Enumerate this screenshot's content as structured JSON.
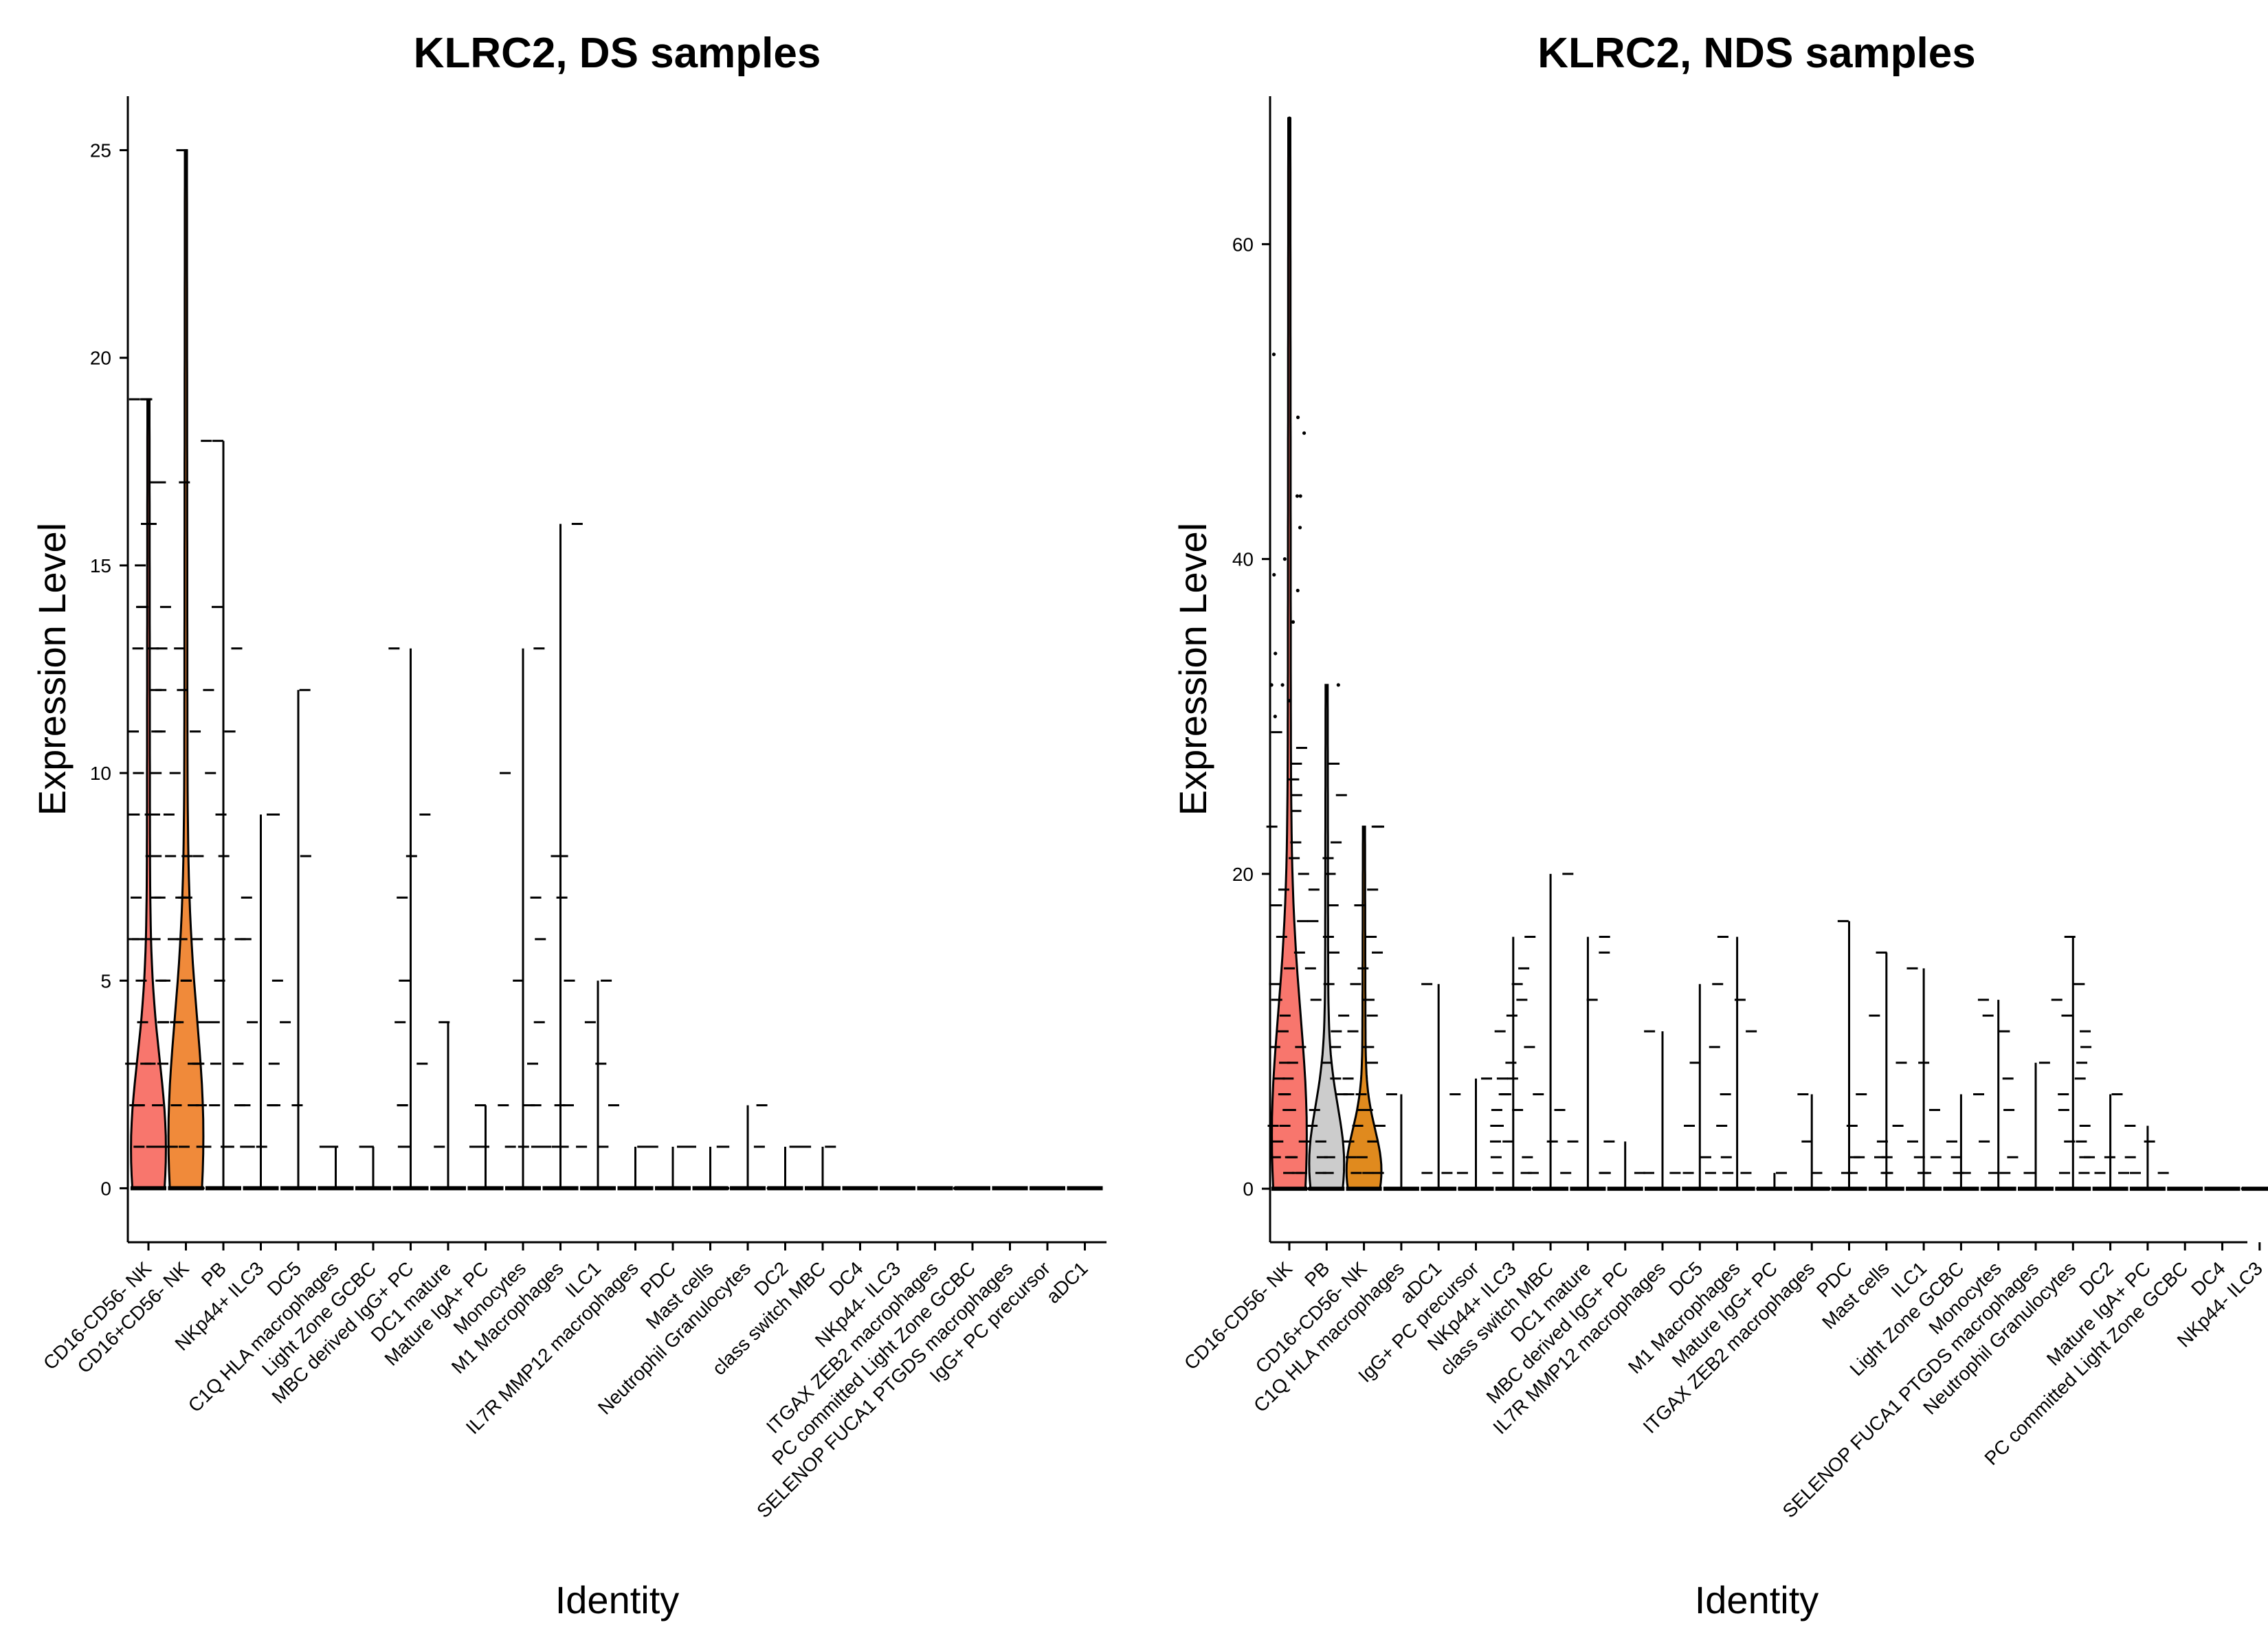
{
  "chart_data": [
    {
      "type": "violin",
      "title": "KLRC2, DS samples",
      "xlabel": "Identity",
      "ylabel": "Expression Level",
      "ylim": [
        -1.3,
        26.3
      ],
      "yticks": [
        0,
        5,
        10,
        15,
        20,
        25
      ],
      "grid": false,
      "legend": "none",
      "categories": [
        {
          "name": "CD16-CD56- NK",
          "max": 19,
          "color": "#F8766D",
          "violin": true,
          "points": [
            0,
            0,
            0,
            0,
            1,
            1,
            1,
            1,
            1,
            2,
            2,
            2,
            2,
            3,
            3,
            3,
            3,
            4,
            4,
            4,
            5,
            5,
            5,
            6,
            6,
            6,
            6,
            7,
            7,
            7,
            8,
            8,
            8,
            9,
            9,
            9,
            10,
            10,
            11,
            11,
            11,
            12,
            12,
            13,
            13,
            13,
            14,
            14,
            14,
            15,
            16,
            16,
            17,
            17,
            19,
            19,
            19
          ]
        },
        {
          "name": "CD16+CD56- NK",
          "max": 25,
          "color": "#F08A3A",
          "violin": true,
          "points": [
            0,
            0,
            0,
            0,
            1,
            1,
            1,
            1,
            2,
            2,
            2,
            3,
            3,
            3,
            4,
            4,
            4,
            5,
            5,
            6,
            6,
            6,
            7,
            7,
            7,
            8,
            8,
            8,
            9,
            10,
            11,
            12,
            13,
            17,
            25
          ]
        },
        {
          "name": "PB",
          "max": 18,
          "color": "#cccccc",
          "violin": false,
          "points": [
            0,
            0,
            0,
            1,
            1,
            1,
            2,
            2,
            3,
            3,
            4,
            5,
            6,
            6,
            8,
            9,
            10,
            11,
            12,
            13,
            14,
            18,
            18
          ]
        },
        {
          "name": "NKp44+ ILC3",
          "max": 9,
          "color": "#cccccc",
          "violin": false,
          "points": [
            0,
            0,
            0,
            1,
            1,
            1,
            2,
            2,
            2,
            3,
            4,
            5,
            6,
            7,
            9,
            9
          ]
        },
        {
          "name": "DC5",
          "max": 12,
          "color": "#cccccc",
          "violin": false,
          "points": [
            0,
            0,
            0,
            2,
            4,
            8,
            12
          ]
        },
        {
          "name": "C1Q HLA macrophages",
          "max": 1,
          "color": "#cccccc",
          "violin": false,
          "points": [
            0,
            0,
            0,
            1,
            1
          ]
        },
        {
          "name": "Light Zone GCBC",
          "max": 1,
          "color": "#cccccc",
          "violin": false,
          "points": [
            0,
            0,
            0,
            1,
            1
          ]
        },
        {
          "name": "MBC derived IgG+ PC",
          "max": 13,
          "color": "#cccccc",
          "violin": false,
          "points": [
            0,
            0,
            0,
            1,
            1,
            1,
            2,
            2,
            3,
            4,
            5,
            7,
            8,
            9,
            13
          ]
        },
        {
          "name": "DC1 mature",
          "max": 4,
          "color": "#cccccc",
          "violin": false,
          "points": [
            0,
            0,
            0,
            1,
            4
          ]
        },
        {
          "name": "Mature IgA+ PC",
          "max": 2,
          "color": "#cccccc",
          "violin": false,
          "points": [
            0,
            0,
            0,
            1,
            1,
            2,
            2
          ]
        },
        {
          "name": "Monocytes",
          "max": 13,
          "color": "#cccccc",
          "violin": false,
          "points": [
            0,
            0,
            0,
            1,
            1,
            1,
            2,
            2,
            3,
            4,
            5,
            6,
            7,
            10,
            13
          ]
        },
        {
          "name": "M1 Macrophages",
          "max": 16,
          "color": "#cccccc",
          "violin": false,
          "points": [
            0,
            0,
            0,
            1,
            1,
            1,
            2,
            2,
            5,
            7,
            8,
            8,
            16
          ]
        },
        {
          "name": "ILC1",
          "max": 5,
          "color": "#cccccc",
          "violin": false,
          "points": [
            0,
            0,
            0,
            1,
            1,
            2,
            3,
            4,
            5
          ]
        },
        {
          "name": "IL7R MMP12 macrophages",
          "max": 1,
          "color": "#cccccc",
          "violin": false,
          "points": [
            0,
            0,
            0,
            1,
            1
          ]
        },
        {
          "name": "PDC",
          "max": 1,
          "color": "#cccccc",
          "violin": false,
          "points": [
            0,
            0,
            0,
            1,
            1,
            1
          ]
        },
        {
          "name": "Mast cells",
          "max": 1,
          "color": "#cccccc",
          "violin": false,
          "points": [
            0,
            0,
            0,
            1,
            1
          ]
        },
        {
          "name": "Neutrophil Granulocytes",
          "max": 2,
          "color": "#cccccc",
          "violin": false,
          "points": [
            0,
            0,
            0,
            1,
            2
          ]
        },
        {
          "name": "DC2",
          "max": 1,
          "color": "#cccccc",
          "violin": false,
          "points": [
            0,
            0,
            0,
            1,
            1
          ]
        },
        {
          "name": "class switch MBC",
          "max": 1,
          "color": "#cccccc",
          "violin": false,
          "points": [
            0,
            0,
            0,
            1,
            1
          ]
        },
        {
          "name": "DC4",
          "max": 0,
          "color": "#cccccc",
          "violin": false,
          "points": [
            0,
            0,
            0
          ]
        },
        {
          "name": "NKp44- ILC3",
          "max": 0,
          "color": "#cccccc",
          "violin": false,
          "points": [
            0,
            0,
            0
          ]
        },
        {
          "name": "ITGAX ZEB2 macrophages",
          "max": 0,
          "color": "#cccccc",
          "violin": false,
          "points": [
            0,
            0,
            0
          ]
        },
        {
          "name": "PC committed Light Zone GCBC",
          "max": 0,
          "color": "#cccccc",
          "violin": false,
          "points": [
            0,
            0,
            0
          ]
        },
        {
          "name": "SELENOP FUCA1 PTGDS macrophages",
          "max": 0,
          "color": "#cccccc",
          "violin": false,
          "points": [
            0,
            0,
            0
          ]
        },
        {
          "name": "IgG+ PC precursor",
          "max": 0,
          "color": "#cccccc",
          "violin": false,
          "points": [
            0,
            0,
            0
          ]
        },
        {
          "name": "aDC1",
          "max": 0,
          "color": "#cccccc",
          "violin": false,
          "points": [
            0,
            0,
            0
          ]
        }
      ]
    },
    {
      "type": "violin",
      "title": "KLRC2, NDS samples",
      "xlabel": "Identity",
      "ylabel": "Expression Level",
      "ylim": [
        -3.4,
        69.4
      ],
      "yticks": [
        0,
        20,
        40,
        60
      ],
      "grid": false,
      "legend": "none",
      "categories": [
        {
          "name": "CD16-CD56- NK",
          "max": 68,
          "color": "#F8766D",
          "violin": true,
          "points": [
            0,
            0,
            0,
            0,
            1,
            1,
            1,
            2,
            2,
            2,
            3,
            3,
            4,
            4,
            5,
            5,
            6,
            6,
            7,
            7,
            8,
            8,
            9,
            9,
            10,
            11,
            12,
            13,
            14,
            15,
            16,
            17,
            18,
            19,
            20,
            21,
            22,
            23,
            24,
            25,
            26,
            27,
            28,
            29,
            30,
            31,
            32,
            32,
            34,
            36,
            38,
            39,
            40,
            42,
            44,
            44,
            48,
            49,
            53,
            68
          ]
        },
        {
          "name": "PB",
          "max": 32,
          "color": "#cccccc",
          "violin": true,
          "points": [
            0,
            0,
            0,
            1,
            1,
            2,
            2,
            3,
            4,
            5,
            6,
            7,
            8,
            9,
            10,
            11,
            12,
            13,
            14,
            15,
            16,
            17,
            18,
            19,
            20,
            21,
            22,
            25,
            27,
            32
          ]
        },
        {
          "name": "CD16+CD56- NK",
          "max": 23,
          "color": "#E08A1E",
          "violin": true,
          "points": [
            0,
            0,
            0,
            1,
            1,
            1,
            2,
            2,
            3,
            3,
            4,
            4,
            5,
            5,
            6,
            6,
            7,
            8,
            9,
            10,
            11,
            12,
            13,
            14,
            15,
            16,
            18,
            19,
            23,
            23
          ]
        },
        {
          "name": "C1Q HLA macrophages",
          "max": 6,
          "color": "#cccccc",
          "violin": false,
          "points": [
            0,
            0,
            0,
            6
          ]
        },
        {
          "name": "aDC1",
          "max": 13,
          "color": "#cccccc",
          "violin": false,
          "points": [
            0,
            0,
            0,
            1,
            1,
            6,
            13
          ]
        },
        {
          "name": "IgG+ PC precursor",
          "max": 7,
          "color": "#cccccc",
          "violin": false,
          "points": [
            0,
            0,
            0,
            1,
            7
          ]
        },
        {
          "name": "NKp44+ ILC3",
          "max": 16,
          "color": "#cccccc",
          "violin": false,
          "points": [
            0,
            0,
            0,
            1,
            1,
            2,
            2,
            3,
            3,
            4,
            4,
            5,
            5,
            6,
            6,
            7,
            7,
            8,
            9,
            10,
            11,
            12,
            13,
            14,
            16
          ]
        },
        {
          "name": "class switch MBC",
          "max": 20,
          "color": "#cccccc",
          "violin": false,
          "points": [
            0,
            0,
            0,
            1,
            1,
            3,
            5,
            6,
            20
          ]
        },
        {
          "name": "DC1 mature",
          "max": 16,
          "color": "#cccccc",
          "violin": false,
          "points": [
            0,
            0,
            0,
            1,
            1,
            3,
            12,
            15,
            16
          ]
        },
        {
          "name": "MBC derived IgG+ PC",
          "max": 3,
          "color": "#cccccc",
          "violin": false,
          "points": [
            0,
            0,
            0,
            1,
            3
          ]
        },
        {
          "name": "IL7R MMP12 macrophages",
          "max": 10,
          "color": "#cccccc",
          "violin": false,
          "points": [
            0,
            0,
            0,
            1,
            1,
            10
          ]
        },
        {
          "name": "DC5",
          "max": 13,
          "color": "#cccccc",
          "violin": false,
          "points": [
            0,
            0,
            0,
            1,
            1,
            2,
            4,
            8,
            9,
            13
          ]
        },
        {
          "name": "M1 Macrophages",
          "max": 16,
          "color": "#cccccc",
          "violin": false,
          "points": [
            0,
            0,
            0,
            1,
            1,
            2,
            4,
            6,
            10,
            12,
            16
          ]
        },
        {
          "name": "Mature IgG+ PC",
          "max": 1,
          "color": "#cccccc",
          "violin": false,
          "points": [
            0,
            0,
            0,
            1
          ]
        },
        {
          "name": "ITGAX ZEB2 macrophages",
          "max": 6,
          "color": "#cccccc",
          "violin": false,
          "points": [
            0,
            0,
            0,
            1,
            3,
            6
          ]
        },
        {
          "name": "PDC",
          "max": 17,
          "color": "#cccccc",
          "violin": false,
          "points": [
            0,
            0,
            0,
            1,
            1,
            2,
            2,
            4,
            6,
            17
          ]
        },
        {
          "name": "Mast cells",
          "max": 15,
          "color": "#cccccc",
          "violin": false,
          "points": [
            0,
            0,
            0,
            1,
            1,
            2,
            2,
            3,
            4,
            8,
            11,
            15
          ]
        },
        {
          "name": "ILC1",
          "max": 14,
          "color": "#cccccc",
          "violin": false,
          "points": [
            0,
            0,
            0,
            1,
            1,
            2,
            2,
            3,
            5,
            8,
            14
          ]
        },
        {
          "name": "Light Zone GCBC",
          "max": 6,
          "color": "#cccccc",
          "violin": false,
          "points": [
            0,
            0,
            0,
            1,
            1,
            2,
            3,
            6
          ]
        },
        {
          "name": "Monocytes",
          "max": 12,
          "color": "#cccccc",
          "violin": false,
          "points": [
            0,
            0,
            0,
            1,
            1,
            2,
            3,
            5,
            7,
            10,
            11,
            12
          ]
        },
        {
          "name": "SELENOP FUCA1 PTGDS macrophages",
          "max": 8,
          "color": "#cccccc",
          "violin": false,
          "points": [
            0,
            0,
            0,
            1,
            8
          ]
        },
        {
          "name": "Neutrophil Granulocytes",
          "max": 16,
          "color": "#cccccc",
          "violin": false,
          "points": [
            0,
            0,
            0,
            1,
            1,
            2,
            2,
            3,
            3,
            4,
            5,
            6,
            7,
            8,
            9,
            10,
            11,
            12,
            13,
            16
          ]
        },
        {
          "name": "DC2",
          "max": 6,
          "color": "#cccccc",
          "violin": false,
          "points": [
            0,
            0,
            0,
            1,
            1,
            2,
            6
          ]
        },
        {
          "name": "Mature IgA+ PC",
          "max": 4,
          "color": "#cccccc",
          "violin": false,
          "points": [
            0,
            0,
            0,
            1,
            1,
            2,
            3,
            4
          ]
        },
        {
          "name": "PC committed Light Zone GCBC",
          "max": 0,
          "color": "#cccccc",
          "violin": false,
          "points": [
            0,
            0,
            0
          ]
        },
        {
          "name": "DC4",
          "max": 0,
          "color": "#cccccc",
          "violin": false,
          "points": [
            0,
            0,
            0
          ]
        },
        {
          "name": "NKp44- ILC3",
          "max": 0,
          "color": "#cccccc",
          "violin": false,
          "points": [
            0,
            0,
            0
          ]
        }
      ]
    }
  ]
}
